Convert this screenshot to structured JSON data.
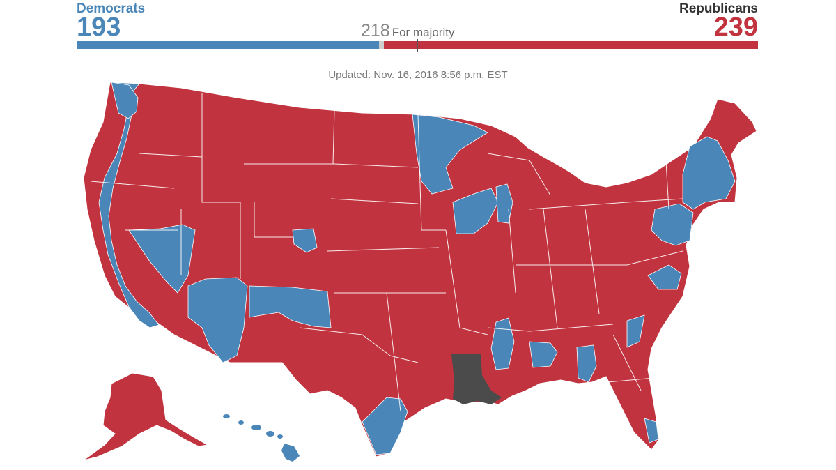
{
  "header": {
    "democrats": {
      "label": "Democrats",
      "seats": "193",
      "color": "#4a86b8"
    },
    "republicans": {
      "label": "Republicans",
      "seats": "239",
      "color": "#c1343f"
    },
    "majority": {
      "value": "218",
      "label": "For majority"
    },
    "total_seats": 435,
    "undecided_color": "#cfcfcf"
  },
  "updated": "Updated: Nov. 16, 2016 8:56 p.m. EST",
  "map": {
    "colors": {
      "republican": "#c1343f",
      "democrat": "#4a86b8",
      "undecided": "#4b4b4b"
    }
  }
}
